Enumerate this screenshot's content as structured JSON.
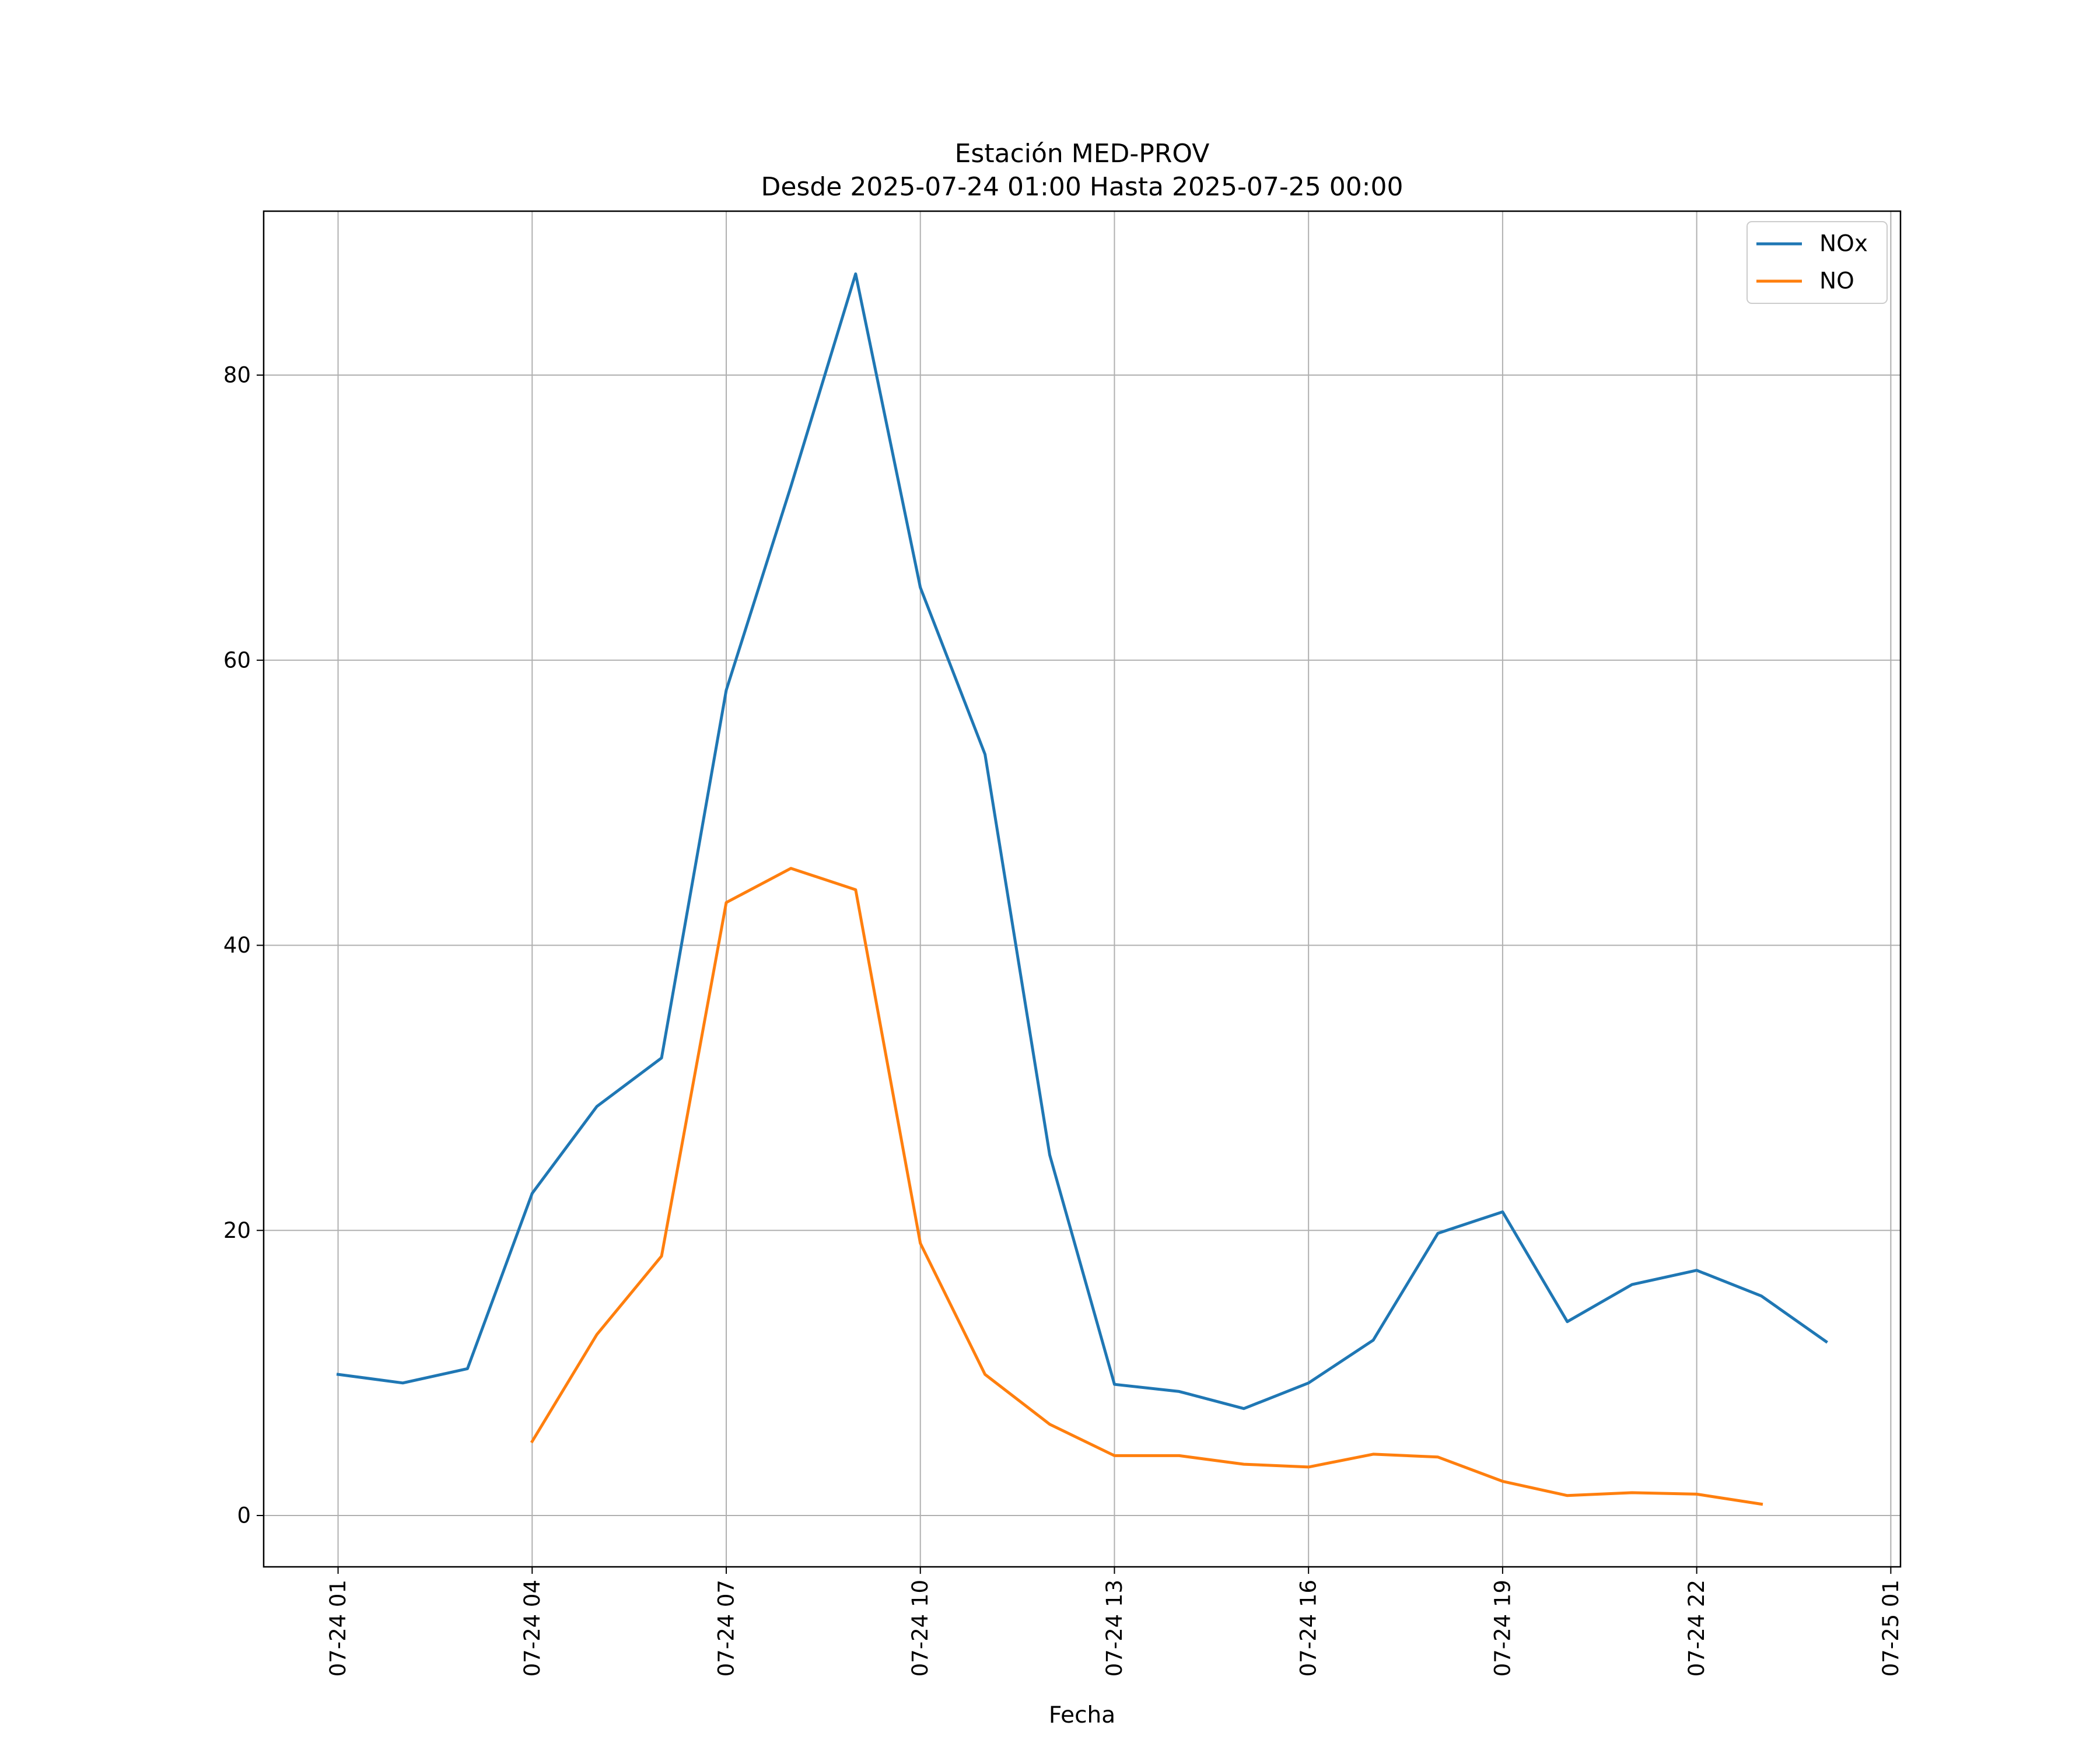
{
  "chart_data": {
    "type": "line",
    "title": "Estación MED-PROV",
    "subtitle": "Desde 2025-07-24 01:00 Hasta 2025-07-25 00:00",
    "xlabel": "Fecha",
    "ylabel": "",
    "x_ticks": [
      "07-24 01",
      "07-24 04",
      "07-24 07",
      "07-24 10",
      "07-24 13",
      "07-24 16",
      "07-24 19",
      "07-24 22",
      "07-25 01"
    ],
    "y_ticks": [
      "0",
      "20",
      "40",
      "60",
      "80"
    ],
    "xlim": [
      "2025-07-23 23:51",
      "2025-07-25 01:09"
    ],
    "ylim": [
      -3.6,
      91.5
    ],
    "grid": true,
    "legend_position": "top-right",
    "x": [
      "2025-07-24 01:00",
      "2025-07-24 02:00",
      "2025-07-24 03:00",
      "2025-07-24 04:00",
      "2025-07-24 05:00",
      "2025-07-24 06:00",
      "2025-07-24 07:00",
      "2025-07-24 08:00",
      "2025-07-24 09:00",
      "2025-07-24 10:00",
      "2025-07-24 11:00",
      "2025-07-24 12:00",
      "2025-07-24 13:00",
      "2025-07-24 14:00",
      "2025-07-24 15:00",
      "2025-07-24 16:00",
      "2025-07-24 17:00",
      "2025-07-24 18:00",
      "2025-07-24 19:00",
      "2025-07-24 20:00",
      "2025-07-24 21:00",
      "2025-07-24 22:00",
      "2025-07-24 23:00",
      "2025-07-25 00:00"
    ],
    "series": [
      {
        "name": "NOx",
        "color": "#1f77b4",
        "values": [
          9.9,
          9.3,
          10.3,
          22.6,
          28.7,
          32.1,
          57.9,
          72.2,
          87.1,
          65.1,
          53.4,
          25.3,
          9.2,
          8.7,
          7.5,
          9.3,
          12.3,
          19.8,
          21.3,
          13.6,
          16.2,
          17.2,
          15.4,
          12.2
        ]
      },
      {
        "name": "NO",
        "color": "#ff7f0e",
        "values": [
          null,
          null,
          null,
          5.2,
          12.7,
          18.2,
          43.0,
          45.4,
          43.9,
          19.1,
          9.9,
          6.4,
          4.2,
          4.2,
          3.6,
          3.4,
          4.3,
          4.1,
          2.4,
          1.4,
          1.6,
          1.5,
          0.8,
          null
        ]
      }
    ]
  }
}
